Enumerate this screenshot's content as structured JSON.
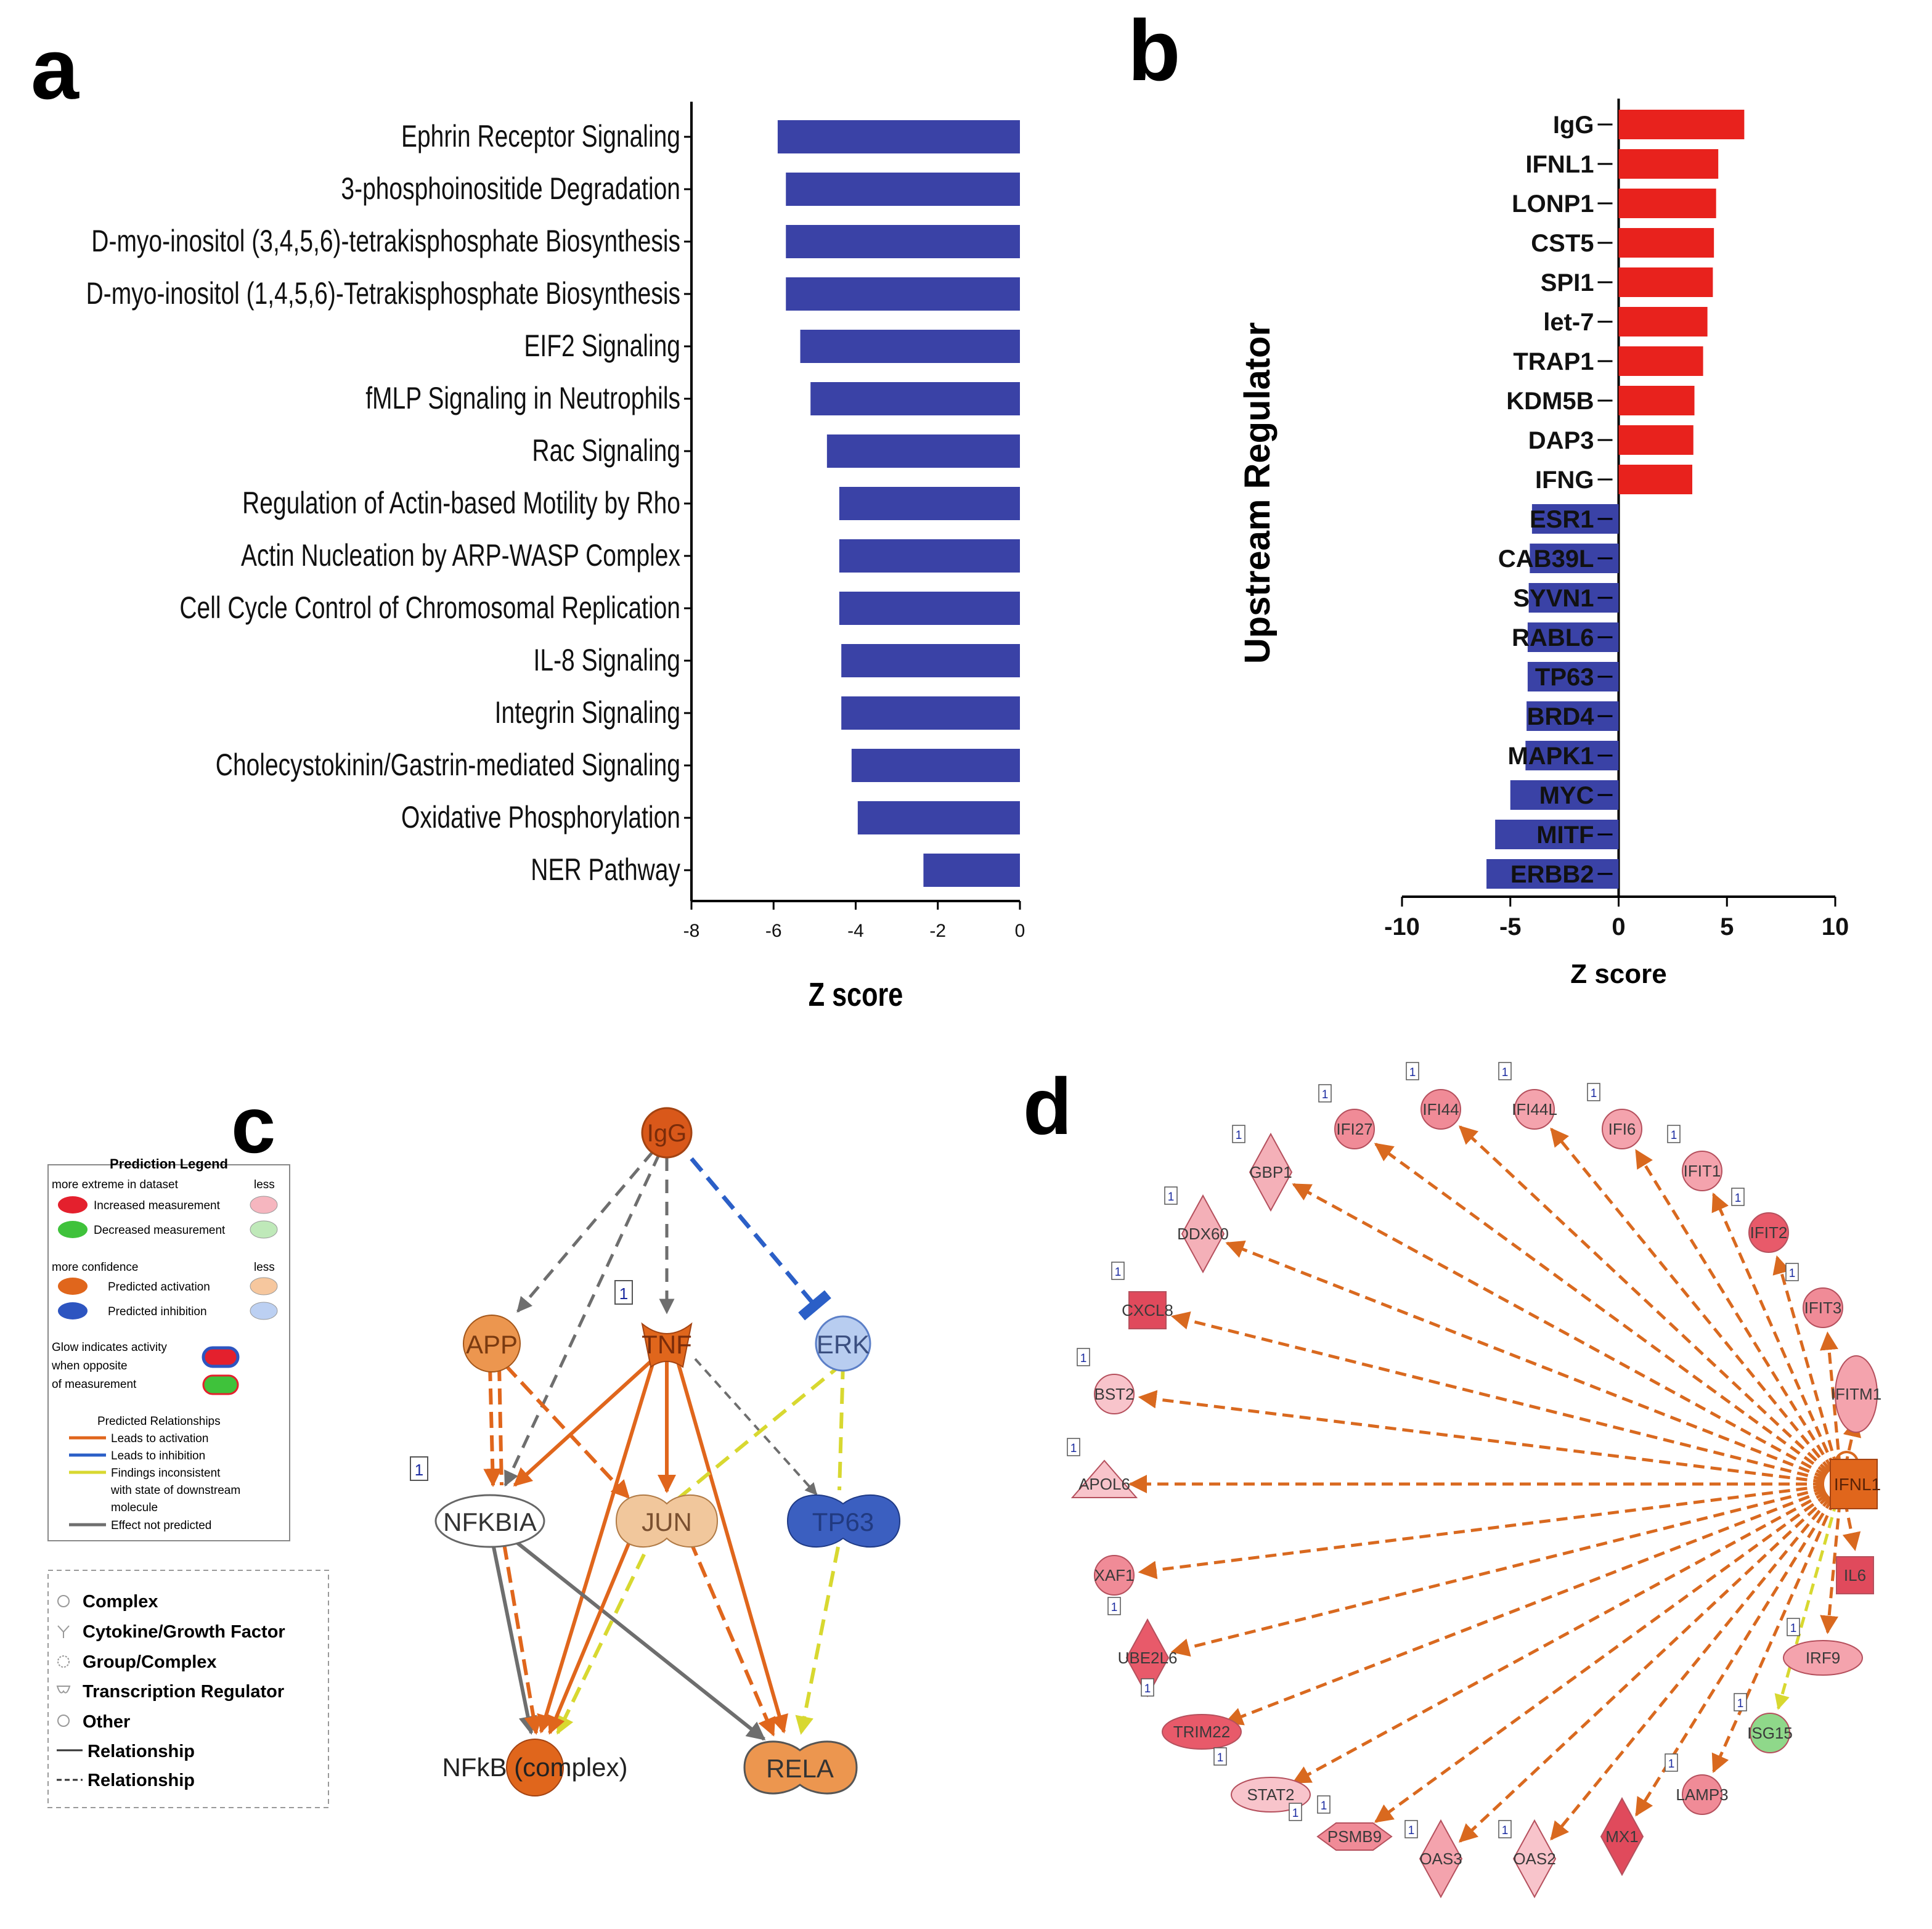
{
  "colors": {
    "bar_blue": "#3a42a6",
    "bar_red": "#e8221d",
    "orange": "#e0661c",
    "light_orange": "#f1c79c",
    "mid_orange": "#ec964f",
    "blue_node": "#3b5fc0",
    "light_blue": "#b8cdf0",
    "pink": "#f0a1aa",
    "red_node": "#e04a5c",
    "green": "#8fd88a",
    "gray": "#6e6e6e",
    "yellow": "#d8d830",
    "inhibit_blue": "#2b5fc7"
  },
  "panel_labels": {
    "a": "a",
    "b": "b",
    "c": "c",
    "d": "d"
  },
  "chart_data": [
    {
      "type": "bar",
      "orientation": "horizontal",
      "panel": "a",
      "categories": [
        "Ephrin Receptor Signaling",
        "3-phosphoinositide Degradation",
        "D-myo-inositol (3,4,5,6)-tetrakisphosphate Biosynthesis",
        "D-myo-inositol (1,4,5,6)-Tetrakisphosphate Biosynthesis",
        "EIF2 Signaling",
        "fMLP Signaling in Neutrophils",
        "Rac Signaling",
        "Regulation of Actin-based Motility by Rho",
        "Actin Nucleation by ARP-WASP Complex",
        "Cell Cycle Control of Chromosomal Replication",
        "IL-8 Signaling",
        "Integrin Signaling",
        "Cholecystokinin/Gastrin-mediated Signaling",
        "Oxidative Phosphorylation",
        "NER Pathway"
      ],
      "values": [
        -5.9,
        -5.7,
        -5.7,
        -5.7,
        -5.35,
        -5.1,
        -4.7,
        -4.4,
        -4.4,
        -4.4,
        -4.35,
        -4.35,
        -4.1,
        -3.95,
        -2.35
      ],
      "xlabel": "Z score",
      "ylabel": "",
      "xlim": [
        -8,
        0
      ],
      "xticks": [
        "-8",
        "-6",
        "-4",
        "-2",
        "0"
      ]
    },
    {
      "type": "bar",
      "orientation": "horizontal",
      "panel": "b",
      "categories": [
        "IgG",
        "IFNL1",
        "LONP1",
        "CST5",
        "SPI1",
        "let-7",
        "TRAP1",
        "KDM5B",
        "DAP3",
        "IFNG",
        "ESR1",
        "CAB39L",
        "SYVN1",
        "RABL6",
        "TP63",
        "BRD4",
        "MAPK1",
        "MYC",
        "MITF",
        "ERBB2"
      ],
      "values": [
        5.8,
        4.6,
        4.5,
        4.4,
        4.35,
        4.1,
        3.9,
        3.5,
        3.45,
        3.4,
        -4.0,
        -4.1,
        -4.15,
        -4.2,
        -4.2,
        -4.25,
        -4.3,
        -5.0,
        -5.7,
        -6.1
      ],
      "xlabel": "Z score",
      "ylabel": "Upstream Regulator",
      "xlim": [
        -10,
        10
      ],
      "xticks": [
        "-10",
        "-5",
        "0",
        "5",
        "10"
      ]
    }
  ],
  "legend_c": {
    "title": "Prediction Legend",
    "more_extreme": "more extreme in dataset",
    "less1": "less",
    "increased": "Increased measurement",
    "decreased": "Decreased measurement",
    "more_confidence": "more confidence",
    "less2": "less",
    "pred_activation": "Predicted activation",
    "pred_inhibition": "Predicted inhibition",
    "glow1": "Glow indicates activity",
    "glow2": "when opposite",
    "glow3": "of measurement",
    "pred_rel": "Predicted Relationships",
    "leads_act": "Leads to activation",
    "leads_inh": "Leads to inhibition",
    "findings1": "Findings inconsistent",
    "findings2": "with state of downstream",
    "findings3": "molecule",
    "effect": "Effect not predicted"
  },
  "shapes_legend": {
    "complex": "Complex",
    "cytokine": "Cytokine/Growth Factor",
    "group": "Group/Complex",
    "tr": "Transcription Regulator",
    "other": "Other",
    "rel_solid": "Relationship",
    "rel_dash": "Relationship"
  },
  "network_c": {
    "IgG": "IgG",
    "APP": "APP",
    "TNF": "TNF",
    "ERK": "ERK",
    "NFKBIA": "NFKBIA",
    "JUN": "JUN",
    "TP63": "TP63",
    "NFkB": "NFkB (complex)",
    "RELA": "RELA",
    "badge1": "1",
    "badge2": "1"
  },
  "network_d": {
    "hub": "IFNL1",
    "badge": "1",
    "targets": [
      "IFI27",
      "IFI44",
      "IFI44L",
      "IFI6",
      "GBP1",
      "IFIT1",
      "DDX60",
      "IFIT2",
      "CXCL8",
      "IFIT3",
      "BST2",
      "IFITM1",
      "APOL6",
      "XAF1",
      "IL6",
      "UBE2L6",
      "IRF9",
      "TRIM22",
      "ISG15",
      "STAT2",
      "LAMP3",
      "PSMB9",
      "OAS3",
      "OAS2",
      "MX1"
    ]
  }
}
